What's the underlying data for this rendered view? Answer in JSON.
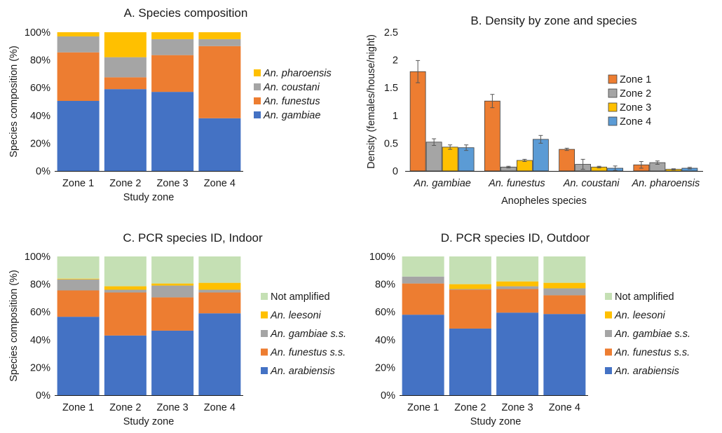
{
  "chart_data": [
    {
      "type": "bar",
      "stacked": true,
      "title": "A. Species composition",
      "xlabel": "Study zone",
      "ylabel": "Species composition (%)",
      "ylim": [
        0,
        100
      ],
      "ytick_labels": [
        "0%",
        "20%",
        "40%",
        "60%",
        "80%",
        "100%"
      ],
      "categories": [
        "Zone 1",
        "Zone 2",
        "Zone 3",
        "Zone 4"
      ],
      "series": [
        {
          "name": "An. gambiae",
          "italic": true,
          "color": "#4472C4",
          "values": [
            50.5,
            59,
            57,
            38
          ]
        },
        {
          "name": "An. funestus",
          "italic": true,
          "color": "#ED7D31",
          "values": [
            35,
            8.5,
            26.5,
            52
          ]
        },
        {
          "name": "An. coustani",
          "italic": true,
          "color": "#A5A5A5",
          "values": [
            11.5,
            14.5,
            11.5,
            5
          ]
        },
        {
          "name": "An. pharoensis",
          "italic": true,
          "color": "#FFC000",
          "values": [
            3,
            18,
            5,
            5
          ]
        }
      ],
      "legend_position": "right",
      "legend_order": [
        3,
        2,
        1,
        0
      ]
    },
    {
      "type": "bar",
      "title": "B. Density by zone and species",
      "xlabel": "Anopheles species",
      "ylabel": "Density (females/house/night)",
      "ylim": [
        0,
        2.5
      ],
      "ytick_labels": [
        "0",
        "0.5",
        "1",
        "1.5",
        "2",
        "2.5"
      ],
      "categories": [
        "An. gambiae",
        "An. funestus",
        "An. coustani",
        "An. pharoensis"
      ],
      "categories_italic": true,
      "series": [
        {
          "name": "Zone 1",
          "color": "#ED7D31",
          "values": [
            1.79,
            1.26,
            0.39,
            0.11
          ],
          "errors": [
            0.2,
            0.12,
            0.02,
            0.06
          ]
        },
        {
          "name": "Zone 2",
          "color": "#A5A5A5",
          "values": [
            0.52,
            0.07,
            0.12,
            0.15
          ],
          "errors": [
            0.06,
            0.015,
            0.09,
            0.03
          ]
        },
        {
          "name": "Zone 3",
          "color": "#FFC000",
          "values": [
            0.43,
            0.19,
            0.07,
            0.03
          ],
          "errors": [
            0.04,
            0.02,
            0.015,
            0.01
          ]
        },
        {
          "name": "Zone 4",
          "color": "#5B9BD5",
          "values": [
            0.42,
            0.57,
            0.05,
            0.05
          ],
          "errors": [
            0.05,
            0.07,
            0.04,
            0.015
          ]
        }
      ],
      "legend_position": "right"
    },
    {
      "type": "bar",
      "stacked": true,
      "title": "C. PCR species ID, Indoor",
      "xlabel": "Study zone",
      "ylabel": "Species composition (%)",
      "ylim": [
        0,
        100
      ],
      "ytick_labels": [
        "0%",
        "20%",
        "40%",
        "60%",
        "80%",
        "100%"
      ],
      "categories": [
        "Zone 1",
        "Zone 2",
        "Zone 3",
        "Zone 4"
      ],
      "series": [
        {
          "name": "An. arabiensis",
          "italic": true,
          "color": "#4472C4",
          "values": [
            56.5,
            43,
            46.5,
            59
          ]
        },
        {
          "name": "An. funestus s.s.",
          "italic": true,
          "color": "#ED7D31",
          "values": [
            19,
            31,
            24,
            15
          ]
        },
        {
          "name": "An. gambiae s.s.",
          "italic": true,
          "color": "#A5A5A5",
          "values": [
            8,
            2,
            8.5,
            2
          ]
        },
        {
          "name": "An. leesoni",
          "italic": true,
          "color": "#FFC000",
          "values": [
            0.5,
            2.5,
            1.5,
            5
          ]
        },
        {
          "name": "Not amplified",
          "italic": false,
          "color": "#C5E0B4",
          "values": [
            16,
            21.5,
            19.5,
            19
          ]
        }
      ],
      "legend_position": "right",
      "legend_order": [
        4,
        3,
        2,
        1,
        0
      ]
    },
    {
      "type": "bar",
      "stacked": true,
      "title": "D. PCR species ID, Outdoor",
      "xlabel": "Study zone",
      "ylabel": "",
      "ylim": [
        0,
        100
      ],
      "ytick_labels": [
        "0%",
        "20%",
        "40%",
        "60%",
        "80%",
        "100%"
      ],
      "categories": [
        "Zone 1",
        "Zone 2",
        "Zone 3",
        "Zone 4"
      ],
      "series": [
        {
          "name": "An. arabiensis",
          "italic": true,
          "color": "#4472C4",
          "values": [
            58,
            48,
            59.5,
            58.5
          ]
        },
        {
          "name": "An. funestus s.s.",
          "italic": true,
          "color": "#ED7D31",
          "values": [
            22.5,
            28,
            17,
            13.5
          ]
        },
        {
          "name": "An. gambiae s.s.",
          "italic": true,
          "color": "#A5A5A5",
          "values": [
            5,
            0.5,
            2,
            5
          ]
        },
        {
          "name": "An. leesoni",
          "italic": true,
          "color": "#FFC000",
          "values": [
            0,
            3.5,
            3.5,
            4
          ]
        },
        {
          "name": "Not amplified",
          "italic": false,
          "color": "#C5E0B4",
          "values": [
            14.5,
            20,
            18,
            19
          ]
        }
      ],
      "legend_position": "right",
      "legend_order": [
        4,
        3,
        2,
        1,
        0
      ]
    }
  ]
}
